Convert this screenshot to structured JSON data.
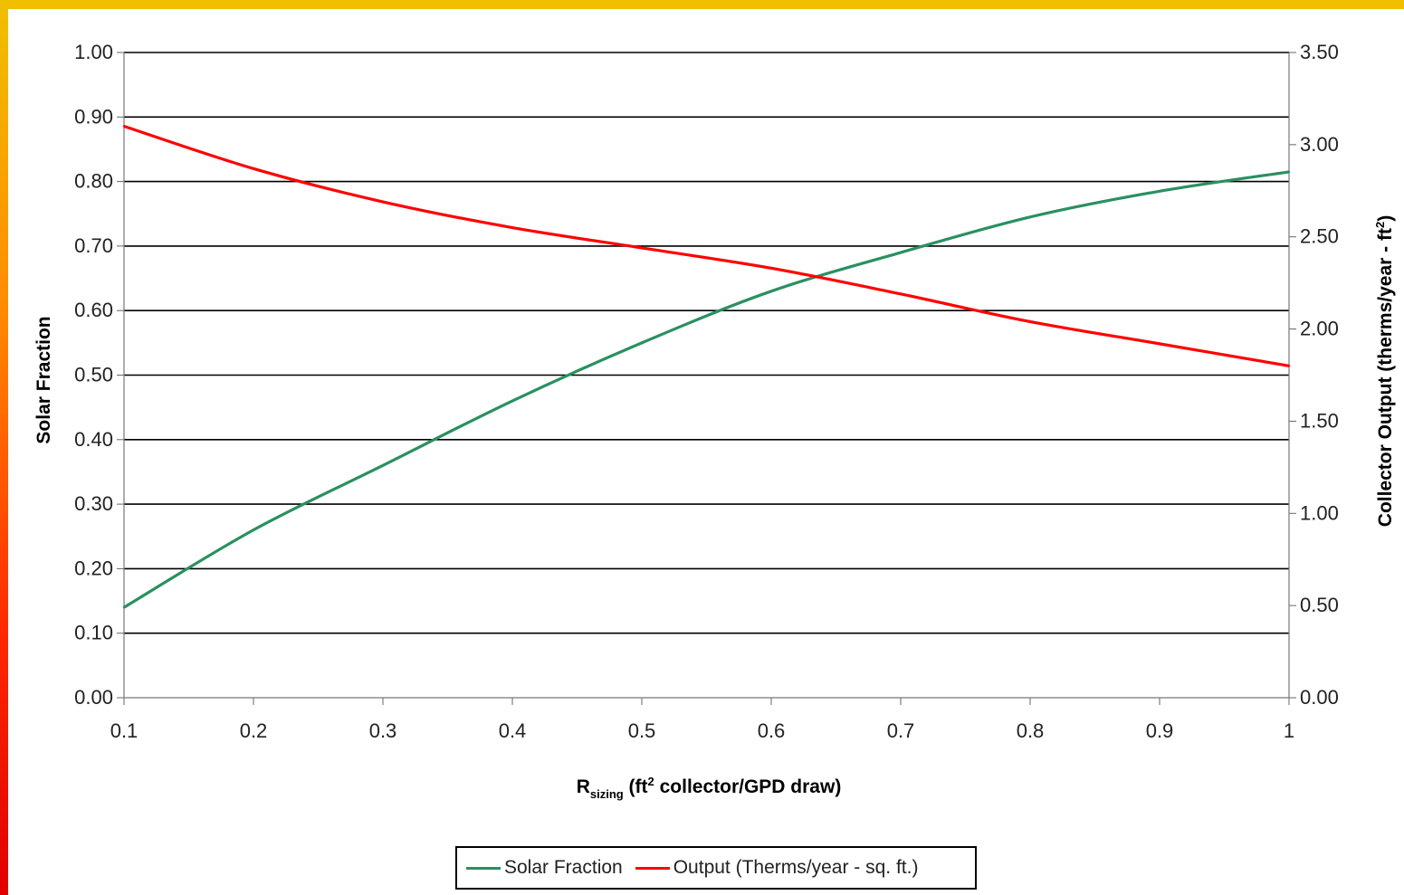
{
  "chart_data": {
    "type": "line",
    "xlabel": {
      "main": "R",
      "sub": "sizing",
      "paren_open": " (ft",
      "sup": "2",
      "rest": " collector/GPD draw)"
    },
    "ylabel_left": "Solar Fraction",
    "ylabel_right": {
      "main": "Collector Output (therms/year - ft",
      "sup": "2",
      "close": ")"
    },
    "xlim": [
      0.1,
      1.0
    ],
    "ylim_left": [
      0.0,
      1.0
    ],
    "ylim_right": [
      0.0,
      3.5
    ],
    "x_ticks": [
      "0.1",
      "0.2",
      "0.3",
      "0.4",
      "0.5",
      "0.6",
      "0.7",
      "0.8",
      "0.9",
      "1"
    ],
    "y_left_ticks": [
      "0.00",
      "0.10",
      "0.20",
      "0.30",
      "0.40",
      "0.50",
      "0.60",
      "0.70",
      "0.80",
      "0.90",
      "1.00"
    ],
    "y_right_ticks": [
      "0.00",
      "0.50",
      "1.00",
      "1.50",
      "2.00",
      "2.50",
      "3.00",
      "3.50"
    ],
    "grid": true,
    "legend_position": "bottom",
    "x": [
      0.1,
      0.2,
      0.3,
      0.4,
      0.5,
      0.6,
      0.7,
      0.8,
      0.9,
      1.0
    ],
    "series": [
      {
        "name": "Solar Fraction",
        "axis": "left",
        "color": "#2a9060",
        "values": [
          0.14,
          0.26,
          0.36,
          0.46,
          0.55,
          0.63,
          0.69,
          0.745,
          0.785,
          0.815
        ]
      },
      {
        "name": "Output (Therms/year - sq. ft.)",
        "axis": "right",
        "color": "#ff0000",
        "values": [
          3.1,
          2.87,
          2.69,
          2.55,
          2.44,
          2.33,
          2.19,
          2.04,
          1.92,
          1.8
        ]
      }
    ]
  }
}
